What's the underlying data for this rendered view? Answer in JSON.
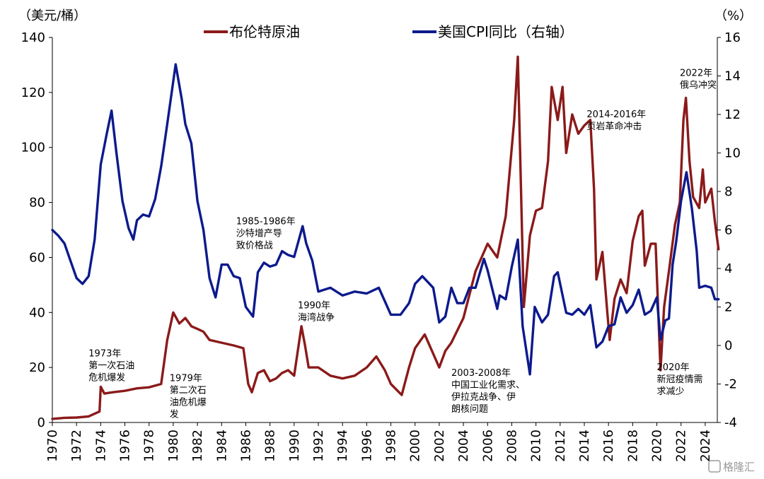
{
  "chart_data": {
    "type": "line",
    "left_unit": "（美元/桶）",
    "right_unit": "（%）",
    "left_ylim": [
      0,
      140
    ],
    "left_yticks": [
      "0",
      "20",
      "40",
      "60",
      "80",
      "100",
      "120",
      "140"
    ],
    "right_ylim": [
      -4,
      16
    ],
    "right_yticks": [
      "-4",
      "-2",
      "0",
      "2",
      "4",
      "6",
      "8",
      "10",
      "12",
      "14",
      "16"
    ],
    "xlim": [
      1970,
      2025
    ],
    "xticks": [
      "1970",
      "1972",
      "1974",
      "1976",
      "1978",
      "1980",
      "1982",
      "1984",
      "1986",
      "1988",
      "1990",
      "1992",
      "1994",
      "1996",
      "1998",
      "2000",
      "2002",
      "2004",
      "2006",
      "2008",
      "2010",
      "2012",
      "2014",
      "2016",
      "2018",
      "2020",
      "2022",
      "2024"
    ],
    "grid": false,
    "legend_position": "top",
    "series": [
      {
        "name": "布伦特原油",
        "axis": "left",
        "color": "#8B1A1A",
        "points": [
          [
            1970,
            1.3
          ],
          [
            1971,
            1.7
          ],
          [
            1972,
            1.8
          ],
          [
            1973,
            2.2
          ],
          [
            1973.9,
            4
          ],
          [
            1974.0,
            13
          ],
          [
            1974.3,
            10.5
          ],
          [
            1975,
            11
          ],
          [
            1976,
            11.5
          ],
          [
            1977,
            12.4
          ],
          [
            1978,
            12.8
          ],
          [
            1979,
            14
          ],
          [
            1979.5,
            30
          ],
          [
            1980,
            40
          ],
          [
            1980.5,
            36
          ],
          [
            1981,
            38
          ],
          [
            1981.5,
            35
          ],
          [
            1982,
            34
          ],
          [
            1982.5,
            33
          ],
          [
            1983,
            30
          ],
          [
            1984,
            29
          ],
          [
            1985,
            28
          ],
          [
            1985.8,
            27
          ],
          [
            1986.2,
            14
          ],
          [
            1986.5,
            11
          ],
          [
            1987,
            18
          ],
          [
            1987.5,
            19
          ],
          [
            1988,
            15
          ],
          [
            1988.5,
            16
          ],
          [
            1989,
            18
          ],
          [
            1989.5,
            19
          ],
          [
            1990,
            17
          ],
          [
            1990.6,
            35
          ],
          [
            1990.9,
            28
          ],
          [
            1991.2,
            20
          ],
          [
            1992,
            20
          ],
          [
            1993,
            17
          ],
          [
            1994,
            16
          ],
          [
            1995,
            17
          ],
          [
            1996,
            20
          ],
          [
            1996.8,
            24
          ],
          [
            1997.5,
            19
          ],
          [
            1998,
            14
          ],
          [
            1998.9,
            10
          ],
          [
            1999.5,
            20
          ],
          [
            2000,
            27
          ],
          [
            2000.8,
            32
          ],
          [
            2001.5,
            25
          ],
          [
            2002,
            20
          ],
          [
            2002.5,
            26
          ],
          [
            2003,
            29
          ],
          [
            2004,
            38
          ],
          [
            2005,
            55
          ],
          [
            2006,
            65
          ],
          [
            2006.8,
            60
          ],
          [
            2007.5,
            75
          ],
          [
            2008.2,
            110
          ],
          [
            2008.5,
            133
          ],
          [
            2008.9,
            60
          ],
          [
            2009,
            42
          ],
          [
            2009.5,
            68
          ],
          [
            2010,
            77
          ],
          [
            2010.5,
            78
          ],
          [
            2011,
            95
          ],
          [
            2011.3,
            122
          ],
          [
            2011.8,
            110
          ],
          [
            2012.2,
            122
          ],
          [
            2012.5,
            98
          ],
          [
            2013,
            112
          ],
          [
            2013.5,
            105
          ],
          [
            2014,
            108
          ],
          [
            2014.5,
            110
          ],
          [
            2014.8,
            85
          ],
          [
            2015,
            52
          ],
          [
            2015.5,
            62
          ],
          [
            2015.9,
            40
          ],
          [
            2016.1,
            30
          ],
          [
            2016.5,
            45
          ],
          [
            2017,
            52
          ],
          [
            2017.5,
            47
          ],
          [
            2018,
            66
          ],
          [
            2018.5,
            75
          ],
          [
            2018.8,
            77
          ],
          [
            2019,
            57
          ],
          [
            2019.5,
            65
          ],
          [
            2019.9,
            65
          ],
          [
            2020.3,
            19
          ],
          [
            2020.6,
            42
          ],
          [
            2021,
            55
          ],
          [
            2021.5,
            72
          ],
          [
            2021.9,
            80
          ],
          [
            2022.2,
            110
          ],
          [
            2022.4,
            118
          ],
          [
            2022.7,
            95
          ],
          [
            2023,
            82
          ],
          [
            2023.5,
            78
          ],
          [
            2023.8,
            92
          ],
          [
            2024,
            80
          ],
          [
            2024.5,
            85
          ],
          [
            2024.8,
            73
          ],
          [
            2025.1,
            63
          ]
        ]
      },
      {
        "name": "美国CPI同比（右轴）",
        "axis": "right",
        "color": "#0D1A8C",
        "points": [
          [
            1970,
            6.0
          ],
          [
            1970.5,
            5.7
          ],
          [
            1971,
            5.3
          ],
          [
            1971.5,
            4.4
          ],
          [
            1972,
            3.5
          ],
          [
            1972.5,
            3.2
          ],
          [
            1973,
            3.6
          ],
          [
            1973.5,
            5.5
          ],
          [
            1974,
            9.4
          ],
          [
            1974.5,
            11.0
          ],
          [
            1974.9,
            12.2
          ],
          [
            1975.3,
            10.0
          ],
          [
            1975.8,
            7.5
          ],
          [
            1976.3,
            6.1
          ],
          [
            1976.7,
            5.5
          ],
          [
            1977,
            6.5
          ],
          [
            1977.5,
            6.8
          ],
          [
            1978,
            6.7
          ],
          [
            1978.5,
            7.6
          ],
          [
            1979,
            9.3
          ],
          [
            1979.5,
            11.5
          ],
          [
            1980.2,
            14.6
          ],
          [
            1980.7,
            12.8
          ],
          [
            1981,
            11.5
          ],
          [
            1981.5,
            10.5
          ],
          [
            1982,
            7.5
          ],
          [
            1982.5,
            6.0
          ],
          [
            1983,
            3.5
          ],
          [
            1983.5,
            2.5
          ],
          [
            1984,
            4.2
          ],
          [
            1984.5,
            4.2
          ],
          [
            1985,
            3.6
          ],
          [
            1985.5,
            3.5
          ],
          [
            1986,
            2.0
          ],
          [
            1986.6,
            1.5
          ],
          [
            1987,
            3.8
          ],
          [
            1987.5,
            4.3
          ],
          [
            1988,
            4.1
          ],
          [
            1988.5,
            4.2
          ],
          [
            1989,
            4.9
          ],
          [
            1989.5,
            4.7
          ],
          [
            1990,
            4.6
          ],
          [
            1990.7,
            6.2
          ],
          [
            1991,
            5.3
          ],
          [
            1991.5,
            4.4
          ],
          [
            1992,
            2.8
          ],
          [
            1993,
            3.0
          ],
          [
            1994,
            2.6
          ],
          [
            1995,
            2.8
          ],
          [
            1996,
            2.7
          ],
          [
            1997,
            3.0
          ],
          [
            1997.5,
            2.3
          ],
          [
            1998,
            1.6
          ],
          [
            1998.8,
            1.6
          ],
          [
            1999.5,
            2.2
          ],
          [
            2000,
            3.2
          ],
          [
            2000.6,
            3.6
          ],
          [
            2001.5,
            3.0
          ],
          [
            2002,
            1.2
          ],
          [
            2002.5,
            1.5
          ],
          [
            2003,
            3.0
          ],
          [
            2003.5,
            2.2
          ],
          [
            2004,
            2.2
          ],
          [
            2004.5,
            3.0
          ],
          [
            2005,
            3.0
          ],
          [
            2005.7,
            4.5
          ],
          [
            2006,
            3.9
          ],
          [
            2006.8,
            1.9
          ],
          [
            2007,
            2.6
          ],
          [
            2007.5,
            2.4
          ],
          [
            2008,
            4.1
          ],
          [
            2008.5,
            5.5
          ],
          [
            2008.9,
            1.0
          ],
          [
            2009.5,
            -1.5
          ],
          [
            2009.9,
            2.0
          ],
          [
            2010.5,
            1.2
          ],
          [
            2011,
            1.6
          ],
          [
            2011.5,
            3.6
          ],
          [
            2011.8,
            3.8
          ],
          [
            2012.5,
            1.7
          ],
          [
            2013,
            1.6
          ],
          [
            2013.5,
            1.9
          ],
          [
            2014,
            1.6
          ],
          [
            2014.5,
            2.1
          ],
          [
            2015,
            -0.1
          ],
          [
            2015.5,
            0.2
          ],
          [
            2016,
            1.0
          ],
          [
            2016.5,
            1.1
          ],
          [
            2017,
            2.5
          ],
          [
            2017.5,
            1.7
          ],
          [
            2018,
            2.1
          ],
          [
            2018.5,
            2.9
          ],
          [
            2019,
            1.6
          ],
          [
            2019.5,
            1.8
          ],
          [
            2020,
            2.5
          ],
          [
            2020.3,
            0.3
          ],
          [
            2020.7,
            1.3
          ],
          [
            2021,
            1.4
          ],
          [
            2021.3,
            4.2
          ],
          [
            2021.6,
            5.4
          ],
          [
            2022,
            7.5
          ],
          [
            2022.45,
            9.0
          ],
          [
            2022.9,
            7.1
          ],
          [
            2023.3,
            4.9
          ],
          [
            2023.5,
            3.0
          ],
          [
            2024,
            3.1
          ],
          [
            2024.5,
            3.0
          ],
          [
            2024.8,
            2.4
          ],
          [
            2025.1,
            2.4
          ]
        ]
      }
    ],
    "annotations": [
      {
        "lines": [
          "1973年",
          "第一次石油",
          "危机爆发"
        ],
        "x": 1973,
        "yv": 24
      },
      {
        "lines": [
          "1979年",
          "第二次石",
          "油危机爆",
          "发"
        ],
        "x": 1979.7,
        "yv": 15
      },
      {
        "lines": [
          "1985-1986年",
          "沙特增产导",
          "致价格战"
        ],
        "x": 1985.2,
        "yv": 72
      },
      {
        "lines": [
          "1990年",
          "海湾战争"
        ],
        "x": 1990.3,
        "yv": 41.5
      },
      {
        "lines": [
          "2003-2008年",
          "中国工业化需求、",
          "伊拉克战争、伊",
          "朗核问题"
        ],
        "x": 2003,
        "yv": 17
      },
      {
        "lines": [
          "2014-2016年",
          "页岩革命冲击"
        ],
        "x": 2014.2,
        "yv": 111
      },
      {
        "lines": [
          "2020年",
          "新冠疫情需",
          "求减少"
        ],
        "x": 2020,
        "yv": 19
      },
      {
        "lines": [
          "2022年",
          "俄乌冲突"
        ],
        "x": 2021.9,
        "yv": 126
      }
    ]
  },
  "watermark": "格隆汇"
}
